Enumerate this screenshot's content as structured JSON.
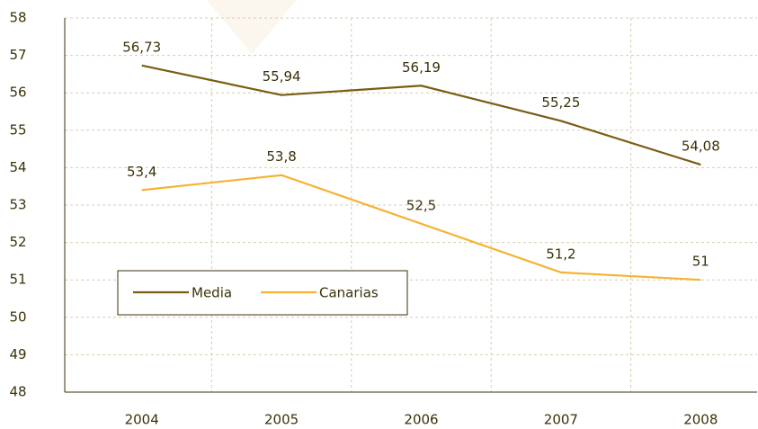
{
  "chart_data": {
    "type": "line",
    "categories": [
      "2004",
      "2005",
      "2006",
      "2007",
      "2008"
    ],
    "series": [
      {
        "name": "Media",
        "color": "#7a5c12",
        "values": [
          56.73,
          55.94,
          56.19,
          55.25,
          54.08
        ],
        "value_labels": [
          "56,73",
          "55,94",
          "56,19",
          "55,25",
          "54,08"
        ]
      },
      {
        "name": "Canarias",
        "color": "#f5b335",
        "values": [
          53.4,
          53.8,
          52.5,
          51.2,
          51
        ],
        "value_labels": [
          "53,4",
          "53,8",
          "52,5",
          "51,2",
          "51"
        ]
      }
    ],
    "ylim": [
      48,
      58
    ],
    "yticks": [
      48,
      49,
      50,
      51,
      52,
      53,
      54,
      55,
      56,
      57,
      58
    ],
    "grid": true
  }
}
